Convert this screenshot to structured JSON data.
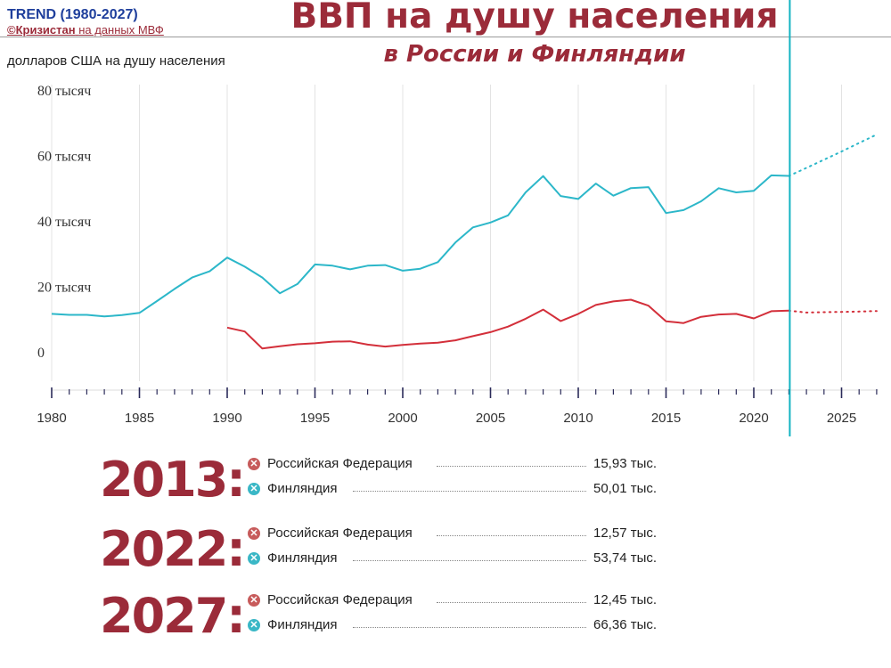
{
  "brand": {
    "title": "TREND (1980-2027)",
    "source_name": "©Кризистан",
    "source_rest": "на данных МВФ"
  },
  "header": {
    "title": "ВВП на душу населения",
    "subtitle": "в России и Финляндии"
  },
  "colors": {
    "russia": "#d32f3a",
    "finland": "#2cb7c9",
    "accent": "#9b2b39"
  },
  "chart_data": {
    "type": "line",
    "ylabel": "долларов США на душу населения",
    "y_ticks": [
      {
        "value": 80000,
        "label": "80 тысяч"
      },
      {
        "value": 60000,
        "label": "60 тысяч"
      },
      {
        "value": 40000,
        "label": "40 тысяч"
      },
      {
        "value": 20000,
        "label": "20 тысяч"
      },
      {
        "value": 0,
        "label": "0"
      }
    ],
    "x_ticks": [
      1980,
      1985,
      1990,
      1995,
      2000,
      2005,
      2010,
      2015,
      2020,
      2025
    ],
    "xlim": [
      1980,
      2027
    ],
    "ylim": [
      -12000,
      80000
    ],
    "grid": true,
    "forecast_from": 2022,
    "series": [
      {
        "name": "Финляндия",
        "color": "#2cb7c9",
        "x": [
          1980,
          1981,
          1982,
          1983,
          1984,
          1985,
          1986,
          1987,
          1988,
          1989,
          1990,
          1991,
          1992,
          1993,
          1994,
          1995,
          1996,
          1997,
          1998,
          1999,
          2000,
          2001,
          2002,
          2003,
          2004,
          2005,
          2006,
          2007,
          2008,
          2009,
          2010,
          2011,
          2012,
          2013,
          2014,
          2015,
          2016,
          2017,
          2018,
          2019,
          2020,
          2021,
          2022
        ],
        "y": [
          11600,
          11300,
          11300,
          10800,
          11200,
          11900,
          15500,
          19200,
          22700,
          24600,
          28800,
          26000,
          22700,
          17900,
          20700,
          26700,
          26300,
          25200,
          26300,
          26500,
          24800,
          25400,
          27400,
          33400,
          38000,
          39500,
          41700,
          48700,
          53700,
          47600,
          46700,
          51400,
          47700,
          50010,
          50300,
          42400,
          43300,
          46000,
          50000,
          48700,
          49200,
          53900,
          53740
        ],
        "forecast_x": [
          2022,
          2023,
          2024,
          2025,
          2026,
          2027
        ],
        "forecast_y": [
          53740,
          56200,
          58700,
          61200,
          63800,
          66360
        ]
      },
      {
        "name": "Российская Федерация",
        "color": "#d32f3a",
        "x": [
          1990,
          1991,
          1992,
          1993,
          1994,
          1995,
          1996,
          1997,
          1998,
          1999,
          2000,
          2001,
          2002,
          2003,
          2004,
          2005,
          2006,
          2007,
          2008,
          2009,
          2010,
          2011,
          2012,
          2013,
          2014,
          2015,
          2016,
          2017,
          2018,
          2019,
          2020,
          2021,
          2022
        ],
        "y": [
          7400,
          6200,
          1000,
          1700,
          2300,
          2600,
          3100,
          3200,
          2200,
          1600,
          2100,
          2500,
          2800,
          3500,
          4800,
          6000,
          7700,
          10100,
          12900,
          9400,
          11600,
          14300,
          15400,
          15930,
          14100,
          9300,
          8800,
          10700,
          11400,
          11600,
          10200,
          12400,
          12570
        ],
        "forecast_x": [
          2022,
          2023,
          2024,
          2025,
          2026,
          2027
        ],
        "forecast_y": [
          12570,
          12000,
          12100,
          12200,
          12300,
          12450
        ]
      }
    ]
  },
  "summary": [
    {
      "year": "2013:",
      "rows": [
        {
          "country": "Российская Федерация",
          "value": "15,93 тыс."
        },
        {
          "country": "Финляндия",
          "value": "50,01 тыс."
        }
      ]
    },
    {
      "year": "2022:",
      "rows": [
        {
          "country": "Российская Федерация",
          "value": "12,57 тыс."
        },
        {
          "country": "Финляндия",
          "value": "53,74 тыс."
        }
      ]
    },
    {
      "year": "2027:",
      "rows": [
        {
          "country": "Российская Федерация",
          "value": "12,45 тыс."
        },
        {
          "country": "Финляндия",
          "value": "66,36 тыс."
        }
      ]
    }
  ]
}
